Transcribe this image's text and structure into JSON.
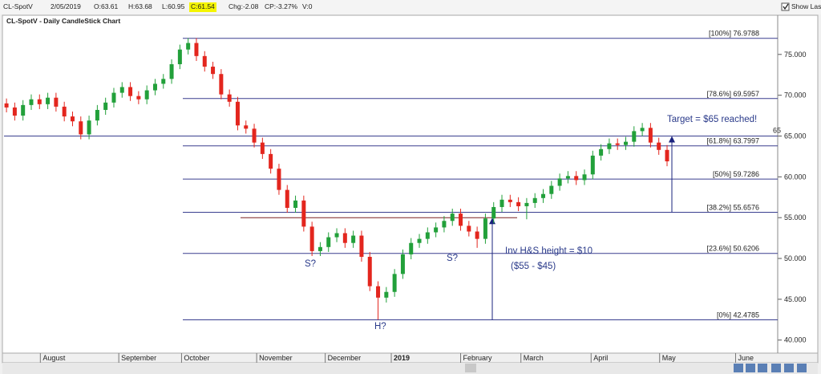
{
  "toolbar": {
    "symbol": "CL-SpotV",
    "date": "2/05/2019",
    "open": "O:63.61",
    "high": "H:63.68",
    "low": "L:60.95",
    "close": "C:61.54",
    "change": "Chg:-2.08",
    "change_pct": "CP:-3.27%",
    "volume": "V:0",
    "show_last": "Show Last"
  },
  "chart_data": {
    "type": "candlestick",
    "title": "CL-SpotV - Daily CandleStick Chart",
    "up_color": "#22a03a",
    "down_color": "#e3261e",
    "open": [
      69.0,
      68.5,
      67.5,
      68.8,
      69.5,
      68.9,
      69.7,
      68.6,
      67.4,
      66.8,
      65.2,
      66.9,
      68.2,
      69.1,
      70.3,
      71.0,
      69.9,
      69.5,
      70.6,
      71.4,
      72.0,
      73.8,
      75.6,
      76.4,
      74.8,
      73.5,
      72.6,
      70.1,
      69.2,
      66.3,
      65.9,
      64.2,
      62.8,
      61.0,
      58.4,
      56.2,
      57.1,
      53.9,
      50.9,
      51.4,
      52.6,
      53.1,
      51.9,
      52.8,
      50.2,
      46.6,
      45.2,
      45.9,
      48.1,
      50.5,
      51.9,
      52.4,
      53.2,
      53.8,
      54.6,
      55.5,
      54.0,
      53.3,
      52.4,
      54.9,
      56.3,
      57.2,
      56.9,
      56.4,
      56.8,
      57.4,
      57.9,
      58.9,
      59.8,
      60.1,
      59.6,
      60.3,
      62.6,
      63.4,
      64.1,
      63.9,
      64.3,
      65.6,
      66.0,
      64.2,
      63.3
    ],
    "high": [
      69.6,
      69.1,
      69.4,
      70.1,
      70.1,
      70.3,
      70.3,
      69.2,
      68.0,
      67.4,
      67.5,
      68.8,
      69.7,
      70.9,
      71.6,
      71.6,
      70.5,
      71.2,
      72.0,
      72.6,
      74.4,
      76.2,
      77.0,
      77.0,
      75.4,
      74.1,
      73.2,
      70.7,
      69.8,
      66.9,
      66.5,
      64.8,
      63.4,
      61.6,
      59.0,
      57.7,
      57.7,
      54.5,
      52.0,
      53.2,
      53.7,
      53.7,
      53.4,
      53.4,
      50.8,
      47.2,
      46.5,
      48.7,
      51.1,
      52.5,
      53.0,
      53.8,
      54.4,
      55.2,
      56.1,
      56.1,
      54.6,
      53.9,
      55.5,
      56.9,
      57.8,
      57.8,
      57.5,
      57.4,
      58.0,
      58.5,
      59.5,
      60.4,
      60.7,
      60.7,
      60.9,
      63.2,
      64.0,
      64.7,
      64.7,
      64.9,
      66.2,
      66.6,
      66.6,
      64.8,
      63.9
    ],
    "low": [
      67.9,
      66.9,
      66.9,
      68.2,
      68.3,
      68.3,
      68.0,
      66.8,
      66.2,
      64.6,
      64.6,
      66.3,
      67.6,
      68.5,
      69.7,
      69.3,
      68.9,
      68.9,
      70.0,
      70.8,
      71.4,
      73.2,
      75.0,
      74.2,
      72.9,
      72.0,
      69.5,
      68.6,
      65.7,
      65.3,
      63.6,
      62.2,
      60.4,
      57.8,
      55.6,
      55.6,
      53.3,
      50.3,
      50.3,
      50.8,
      52.0,
      51.3,
      51.3,
      49.6,
      46.0,
      42.5,
      44.6,
      45.3,
      47.5,
      49.9,
      51.3,
      51.8,
      52.6,
      53.2,
      54.0,
      53.4,
      52.7,
      51.3,
      51.8,
      54.3,
      55.7,
      56.3,
      55.8,
      54.8,
      56.2,
      56.8,
      57.3,
      58.3,
      59.2,
      59.0,
      59.0,
      59.7,
      62.0,
      62.8,
      63.3,
      63.3,
      63.7,
      65.0,
      63.6,
      62.7,
      61.3
    ],
    "close": [
      68.5,
      67.5,
      68.8,
      69.5,
      68.9,
      69.7,
      68.6,
      67.4,
      66.8,
      65.2,
      66.9,
      68.2,
      69.1,
      70.3,
      71.0,
      69.9,
      69.5,
      70.6,
      71.4,
      72.0,
      73.8,
      75.6,
      76.4,
      74.8,
      73.5,
      72.6,
      70.1,
      69.2,
      66.3,
      65.9,
      64.2,
      62.8,
      61.0,
      58.4,
      56.2,
      57.1,
      53.9,
      50.9,
      51.4,
      52.6,
      53.1,
      51.9,
      52.8,
      50.2,
      46.6,
      45.2,
      45.9,
      48.1,
      50.5,
      51.9,
      52.4,
      53.2,
      53.8,
      54.6,
      55.5,
      54.0,
      53.3,
      52.4,
      54.9,
      56.3,
      57.2,
      56.9,
      56.4,
      56.8,
      57.4,
      57.9,
      58.9,
      59.8,
      60.1,
      59.6,
      60.3,
      62.6,
      63.4,
      64.1,
      63.9,
      64.3,
      65.6,
      66.0,
      64.2,
      63.3,
      61.9
    ],
    "xlim": [
      -0.3,
      93.4
    ],
    "xticks": [
      {
        "value": 4.1,
        "label": "August"
      },
      {
        "value": 13.6,
        "label": "September"
      },
      {
        "value": 21.2,
        "label": "October"
      },
      {
        "value": 30.3,
        "label": "November"
      },
      {
        "value": 38.6,
        "label": "December"
      },
      {
        "value": 46.6,
        "label": "2019"
      },
      {
        "value": 55,
        "label": "February"
      },
      {
        "value": 62.3,
        "label": "March"
      },
      {
        "value": 70.8,
        "label": "April"
      },
      {
        "value": 79.1,
        "label": "May"
      },
      {
        "value": 88.3,
        "label": "June"
      }
    ],
    "ylim": [
      38.4,
      79.8
    ],
    "yticks": [
      {
        "value": 40,
        "label": "40.000"
      },
      {
        "value": 45,
        "label": "45.000"
      },
      {
        "value": 50,
        "label": "50.000"
      },
      {
        "value": 55,
        "label": "55.000"
      },
      {
        "value": 60,
        "label": "60.000"
      },
      {
        "value": 65,
        "label": "65.000"
      },
      {
        "value": 70,
        "label": "70.000"
      },
      {
        "value": 75,
        "label": "75.000"
      }
    ],
    "fib_levels": [
      {
        "value": 76.9788,
        "label": "[100%] 76.9788"
      },
      {
        "value": 69.5957,
        "label": "[78.6%] 69.5957"
      },
      {
        "value": 63.7997,
        "label": "[61.8%] 63.7997"
      },
      {
        "value": 59.7286,
        "label": "[50%] 59.7286"
      },
      {
        "value": 55.6576,
        "label": "[38.2%] 55.6576"
      },
      {
        "value": 50.6206,
        "label": "[23.6%] 50.6206"
      },
      {
        "value": 42.4785,
        "label": "[0%] 42.4785"
      }
    ],
    "resistance": {
      "value": 65,
      "label": "65"
    },
    "neckline": 55,
    "height_arrow": [
      42.4785,
      55
    ],
    "target_arrow": [
      55.6576,
      65
    ],
    "annotations": [
      "S?",
      "H?",
      "S?",
      "Inv H&S height = $10",
      "($55 - $45)",
      "Target = $65 reached!"
    ]
  }
}
